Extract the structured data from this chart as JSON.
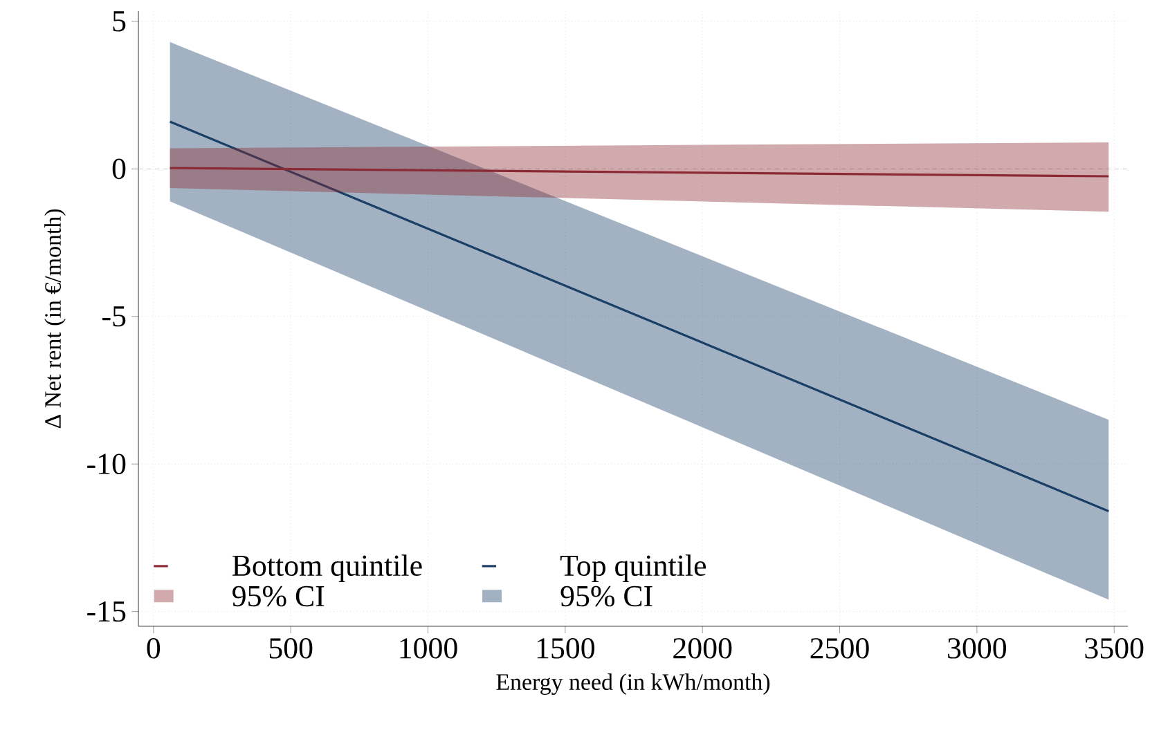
{
  "chart_data": {
    "type": "line",
    "xlabel": "Energy need (in kWh/month)",
    "ylabel": "Δ Net rent (in €/month)",
    "xlim": [
      -55,
      3550
    ],
    "ylim": [
      -15.5,
      5.35
    ],
    "xticks": [
      0,
      500,
      1000,
      1500,
      2000,
      2500,
      3000,
      3500
    ],
    "yticks": [
      -15,
      -10,
      -5,
      0,
      5
    ],
    "grid": true,
    "legend": "bottom left",
    "line_style": "solid",
    "marker": "none",
    "annotations": [
      "95% CI",
      "95% CI"
    ],
    "ref_lines": [
      {
        "axis": "y",
        "value": 0,
        "color": "#bbbbbb",
        "line_style": "dashed"
      }
    ],
    "x": [
      60,
      3480
    ],
    "series": [
      {
        "name": "Bottom quintile",
        "color": "#8b2a35",
        "values": [
          0.03,
          -0.25
        ],
        "lower": [
          -0.65,
          -1.45
        ],
        "upper": [
          0.7,
          0.9
        ]
      },
      {
        "name": "Top quintile",
        "color": "#1a3f66",
        "values": [
          1.6,
          -11.6
        ],
        "lower": [
          -1.1,
          -14.6
        ],
        "upper": [
          4.3,
          -8.5
        ]
      }
    ]
  }
}
